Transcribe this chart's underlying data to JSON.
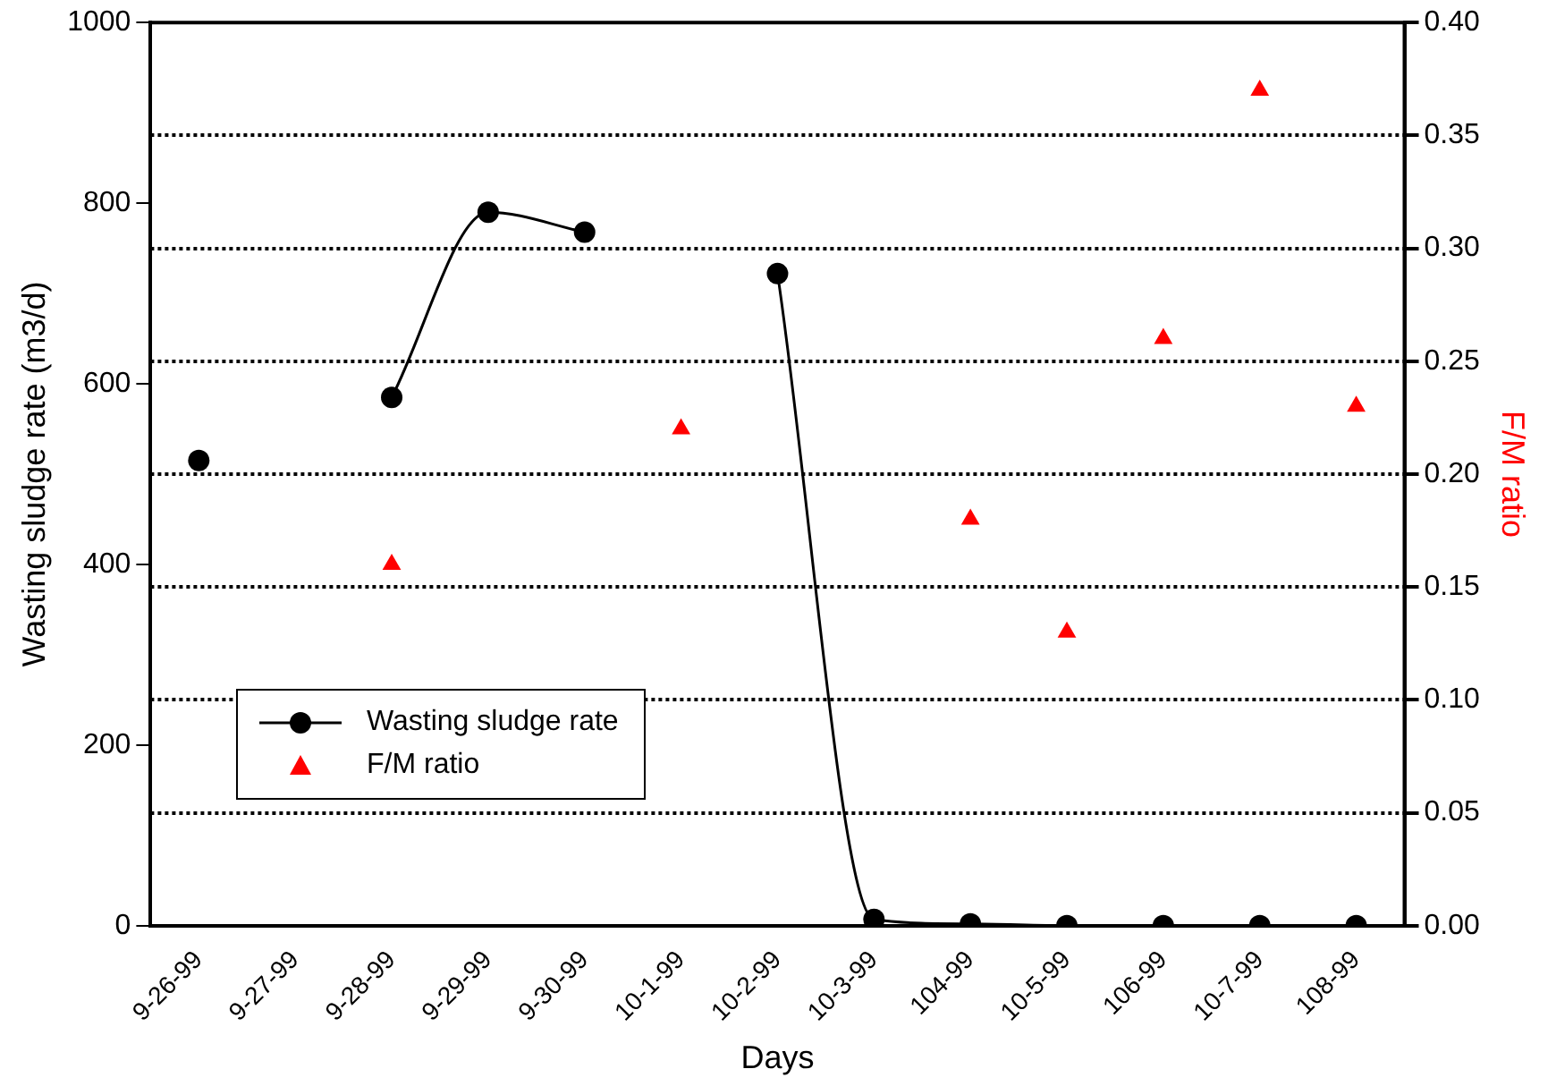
{
  "chart_data": {
    "type": "line",
    "xlabel": "Days",
    "ylabel": "Wasting sludge rate (m3/d)",
    "y2label": "F/M ratio",
    "categories": [
      "9-26-99",
      "9-27-99",
      "9-28-99",
      "9-29-99",
      "9-30-99",
      "10-1-99",
      "10-2-99",
      "10-3-99",
      "104-99",
      "10-5-99",
      "106-99",
      "10-7-99",
      "108-99"
    ],
    "series": [
      {
        "name": "Wasting sludge rate",
        "type": "line",
        "color": "#000000",
        "marker": "circle",
        "values": [
          515,
          null,
          585,
          790,
          768,
          null,
          722,
          7,
          2,
          0,
          0,
          0,
          0
        ]
      },
      {
        "name": "F/M ratio",
        "type": "scatter",
        "axis": "y2",
        "color": "#ff0000",
        "marker": "triangle",
        "values": [
          null,
          null,
          0.16,
          null,
          null,
          0.22,
          null,
          null,
          0.18,
          0.13,
          0.26,
          0.37,
          0.23
        ]
      }
    ],
    "ylim": [
      0,
      1000
    ],
    "yticks": [
      0,
      200,
      400,
      600,
      800,
      1000
    ],
    "y2lim": [
      0,
      0.4
    ],
    "y2ticks": [
      {
        "value": 0,
        "label": "0.00"
      },
      0.05,
      {
        "value": 0.1,
        "label": "0.10"
      },
      0.15,
      {
        "value": 0.2,
        "label": "0.20"
      },
      0.25,
      {
        "value": 0.3,
        "label": "0.30"
      },
      0.35,
      {
        "value": 0.4,
        "label": "0.40"
      }
    ],
    "grid": "y",
    "legend": "bottom left"
  }
}
